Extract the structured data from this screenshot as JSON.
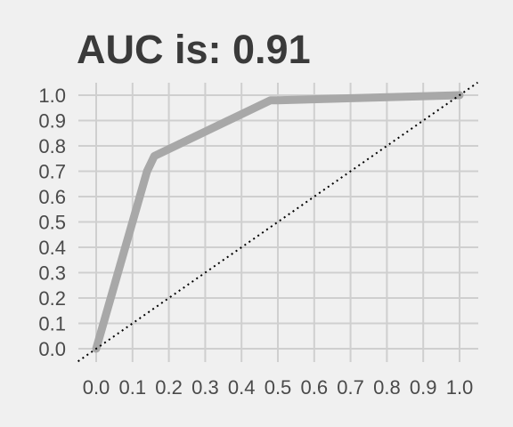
{
  "chart_data": {
    "type": "line",
    "title": "AUC is: 0.91",
    "xlabel": "",
    "ylabel": "",
    "xlim": [
      0,
      1
    ],
    "ylim": [
      0,
      1
    ],
    "xticks": [
      "0.0",
      "0.1",
      "0.2",
      "0.3",
      "0.4",
      "0.5",
      "0.6",
      "0.7",
      "0.8",
      "0.9",
      "1.0"
    ],
    "yticks": [
      "0.0",
      "0.1",
      "0.2",
      "0.3",
      "0.4",
      "0.5",
      "0.6",
      "0.7",
      "0.8",
      "0.9",
      "1.0"
    ],
    "grid": true,
    "series": [
      {
        "x": [
          0,
          0.14,
          0.16,
          0.48,
          0.5,
          1.0
        ],
        "y": [
          0,
          0.7,
          0.76,
          0.98,
          0.98,
          1.0
        ],
        "color": "#a8a8a8",
        "style": "solid"
      },
      {
        "x": [
          -0.05,
          1.05
        ],
        "y": [
          -0.05,
          1.05
        ],
        "color": "#000000",
        "style": "dotted"
      }
    ]
  }
}
